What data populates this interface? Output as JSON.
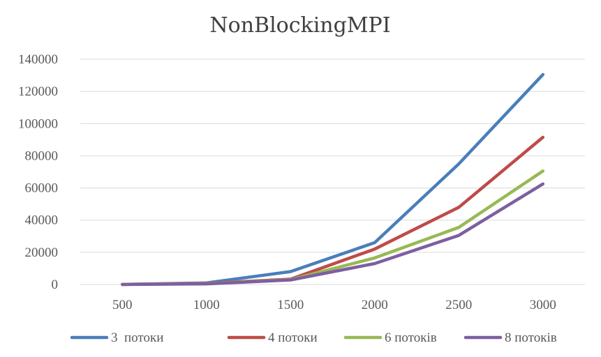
{
  "chart_data": {
    "type": "line",
    "title": "NonBlockingMPI",
    "xlabel": "",
    "ylabel": "",
    "categories": [
      "500",
      "1000",
      "1500",
      "2000",
      "2500",
      "3000"
    ],
    "ylim": [
      0,
      140000
    ],
    "yticks": [
      0,
      20000,
      40000,
      60000,
      80000,
      100000,
      120000,
      140000
    ],
    "ytick_labels": [
      "0",
      "20000",
      "40000",
      "60000",
      "80000",
      "100000",
      "120000",
      "140000"
    ],
    "grid": true,
    "legend_position": "bottom",
    "series": [
      {
        "name": "3  потоки",
        "color": "#4a7ebb",
        "values": [
          50,
          1000,
          8000,
          26000,
          75000,
          130500
        ]
      },
      {
        "name": "4 потоки",
        "color": "#be4b48",
        "values": [
          40,
          700,
          3300,
          22000,
          48000,
          91500
        ]
      },
      {
        "name": "6 потоків",
        "color": "#98b954",
        "values": [
          30,
          500,
          3000,
          16500,
          35500,
          70500
        ]
      },
      {
        "name": "8 потоків",
        "color": "#7d5fa0",
        "values": [
          20,
          400,
          2800,
          13000,
          30500,
          62500
        ]
      }
    ]
  }
}
